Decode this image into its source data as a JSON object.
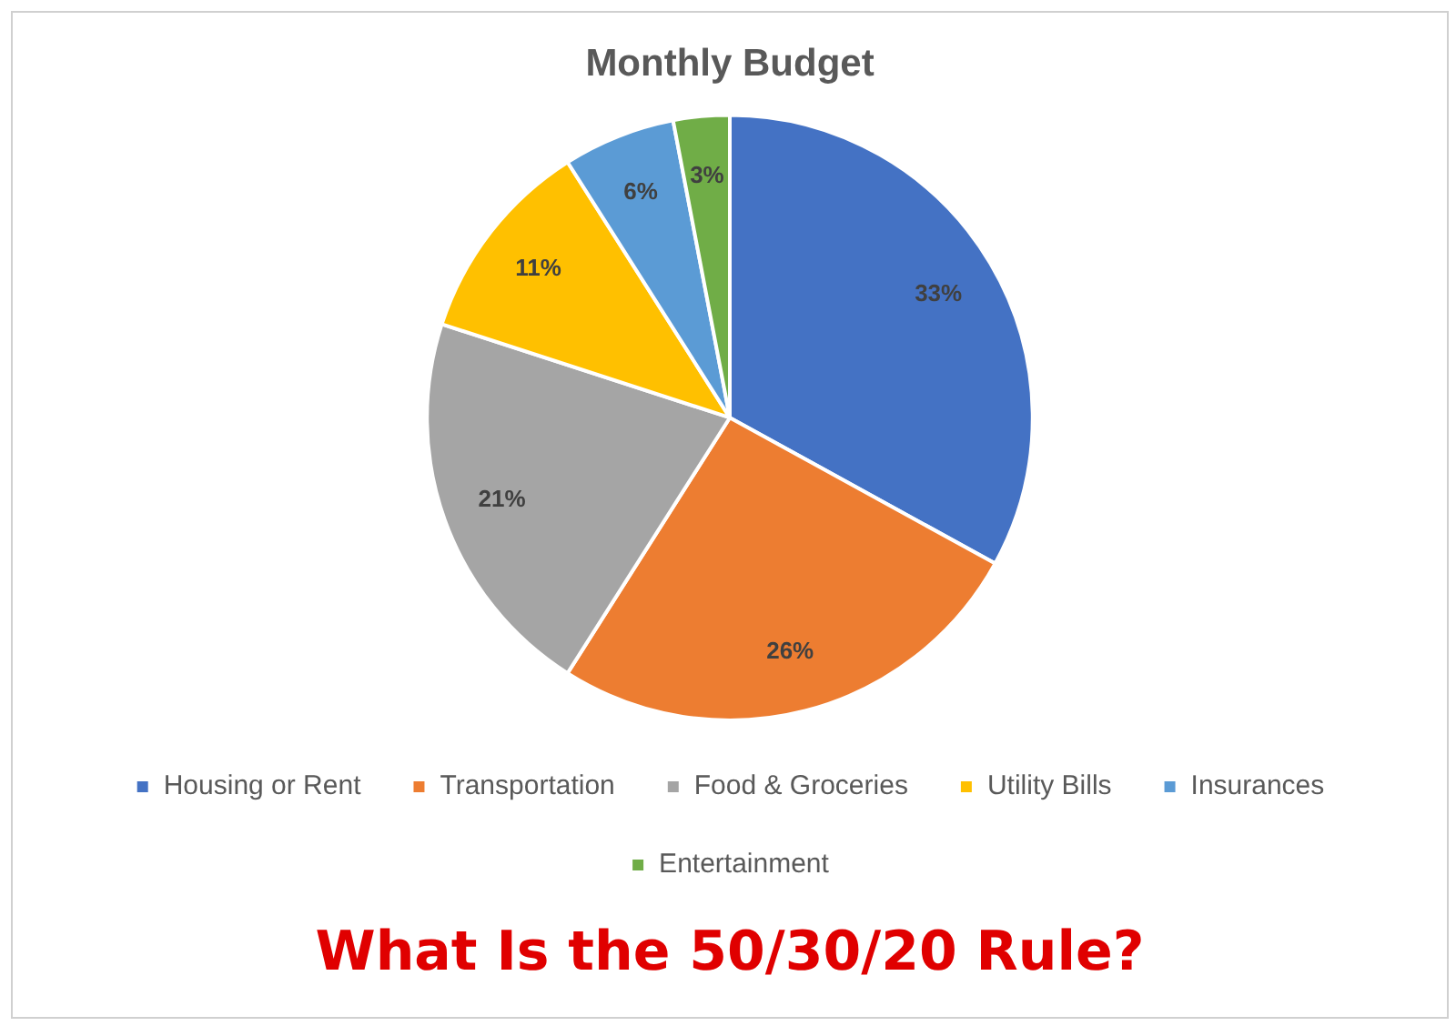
{
  "chart_data": {
    "type": "pie",
    "title": "Monthly Budget",
    "categories": [
      "Housing or Rent",
      "Transportation",
      "Food & Groceries",
      "Utility Bills",
      "Insurances",
      "Entertainment"
    ],
    "values": [
      33,
      26,
      21,
      11,
      6,
      3
    ],
    "value_labels": [
      "33%",
      "26%",
      "21%",
      "11%",
      "6%",
      "3%"
    ],
    "colors": [
      "#4472c4",
      "#ed7d31",
      "#a5a5a5",
      "#ffc000",
      "#5b9bd5",
      "#70ad47"
    ],
    "annotations": [
      "What Is the 50/30/20 Rule?"
    ],
    "legend": "bottom"
  }
}
